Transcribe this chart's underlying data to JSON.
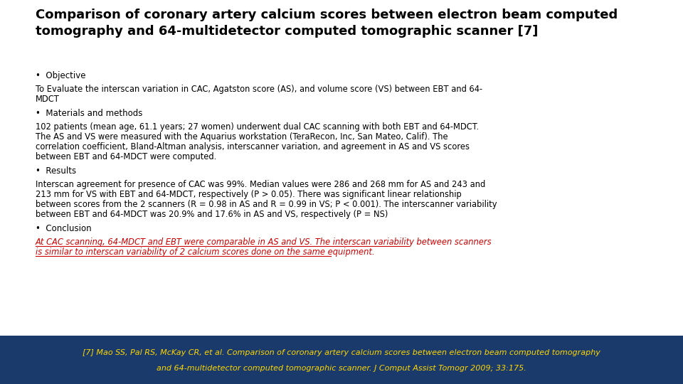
{
  "title": "Comparison of coronary artery calcium scores between electron beam computed\ntomography and 64-multidetector computed tomographic scanner [7]",
  "bg_color": "#ffffff",
  "footer_bg": "#1a3a6b",
  "footer_text_color": "#ffd700",
  "footer_line1": "[7] Mao SS, Pal RS, McKay CR, et al. Comparison of coronary artery calcium scores between electron beam computed tomography",
  "footer_line2": "and 64-multidetector computed tomographic scanner. J Comput Assist Tomogr 2009; 33:175.",
  "sections": [
    {
      "type": "bullet",
      "text": "Objective"
    },
    {
      "type": "body",
      "text": "To Evaluate the interscan variation in CAC, Agatston score (AS), and volume score (VS) between EBT and 64-\nMDCT"
    },
    {
      "type": "bullet",
      "text": "Materials and methods"
    },
    {
      "type": "body",
      "text": "102 patients (mean age, 61.1 years; 27 women) underwent dual CAC scanning with both EBT and 64-MDCT.\nThe AS and VS were measured with the Aquarius workstation (TeraRecon, Inc, San Mateo, Calif). The\ncorrelation coefficient, Bland-Altman analysis, interscanner variation, and agreement in AS and VS scores\nbetween EBT and 64-MDCT were computed."
    },
    {
      "type": "bullet",
      "text": "Results"
    },
    {
      "type": "body",
      "text": "Interscan agreement for presence of CAC was 99%. Median values were 286 and 268 mm for AS and 243 and\n213 mm for VS with EBT and 64-MDCT, respectively (P > 0.05). There was significant linear relationship\nbetween scores from the 2 scanners (R = 0.98 in AS and R = 0.99 in VS; P < 0.001). The interscanner variability\nbetween EBT and 64-MDCT was 20.9% and 17.6% in AS and VS, respectively (P = NS)"
    },
    {
      "type": "bullet",
      "text": "Conclusion"
    },
    {
      "type": "conclusion",
      "text": "At CAC scanning, 64-MDCT and EBT were comparable in AS and VS. The interscan variability between scanners\nis similar to interscan variability of 2 calcium scores done on the same equipment.",
      "color": "#cc0000",
      "underline": true
    }
  ]
}
